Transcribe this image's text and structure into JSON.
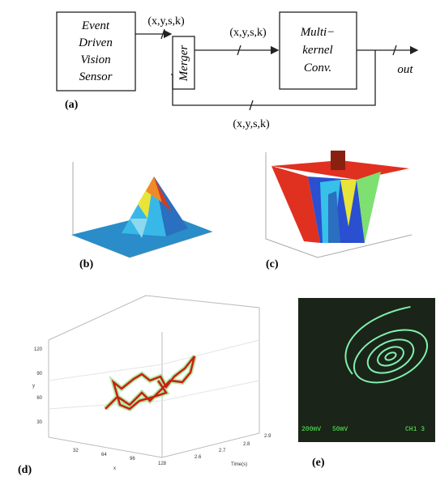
{
  "panel_a": {
    "sensor": [
      "Event",
      "Driven",
      "Vision",
      "Sensor"
    ],
    "merger": "Merger",
    "conv": [
      "Multi−",
      "kernel",
      "Conv."
    ],
    "edge_labels": [
      "(x,y,s,k)",
      "(x,y,s,k)",
      "(x,y,s,k)"
    ],
    "out": "out",
    "label": "(a)"
  },
  "panel_b": {
    "label": "(b)"
  },
  "panel_c": {
    "label": "(c)"
  },
  "panel_d": {
    "label": "(d)",
    "y_ticks": [
      "120",
      "90",
      "60",
      "30"
    ],
    "x_ticks": [
      "32",
      "64",
      "96",
      "128"
    ],
    "t_ticks": [
      "2.9",
      "2.8",
      "2.7",
      "2.6"
    ],
    "x_axis": "x",
    "y_axis": "y",
    "t_axis": "Time(s)"
  },
  "panel_e": {
    "label": "(e)",
    "readout": [
      "200mV",
      "50mV",
      "CH1 3"
    ]
  }
}
